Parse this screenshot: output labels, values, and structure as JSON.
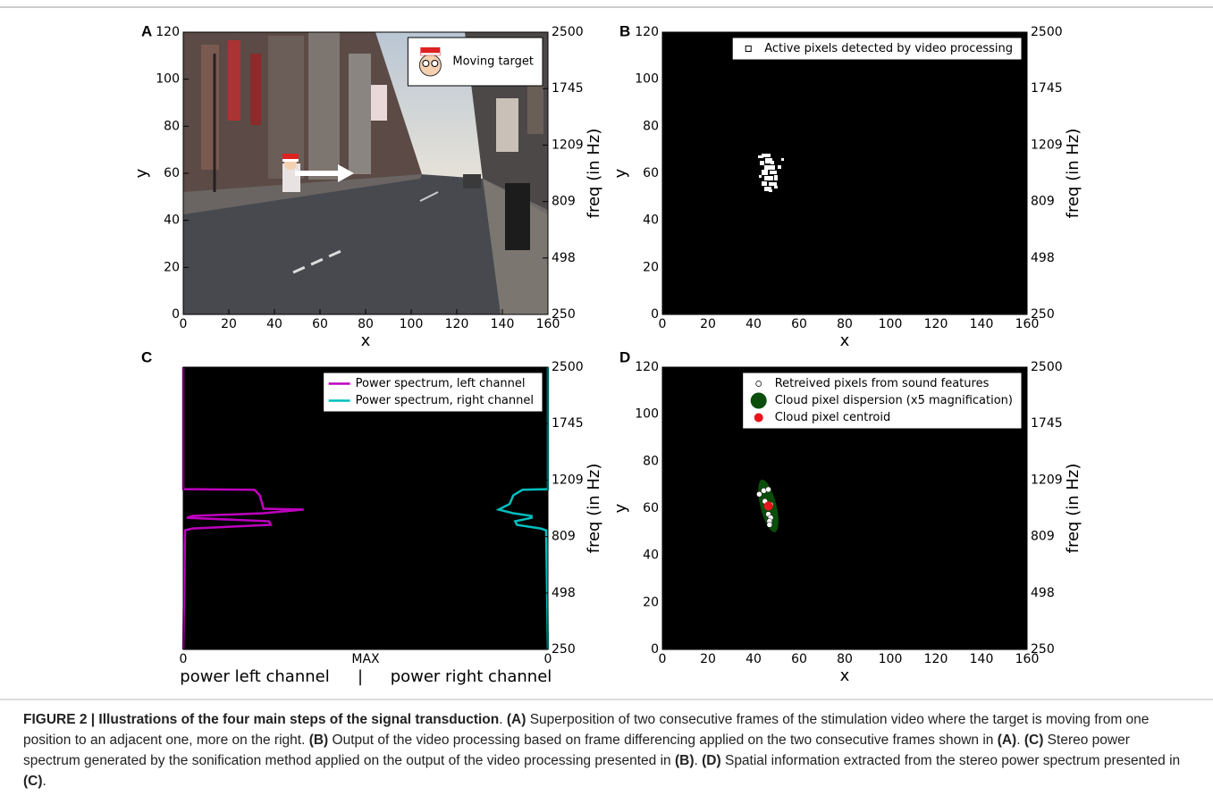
{
  "chart_data": [
    {
      "type": "photo",
      "panel_label": "A",
      "xlabel": "x",
      "ylabel": "y",
      "y2label": "freq (in Hz)",
      "xlim": [
        0,
        160
      ],
      "ylim": [
        0,
        120
      ],
      "y2lim": [
        250,
        2500
      ],
      "xticks": [
        0,
        20,
        40,
        60,
        80,
        100,
        120,
        140,
        160
      ],
      "yticks": [
        0,
        20,
        40,
        60,
        80,
        100,
        120
      ],
      "y2ticks": [
        250,
        498,
        809,
        1209,
        1745,
        2500
      ],
      "legend": "upper right",
      "legend_entries": [
        "Moving target"
      ]
    },
    {
      "type": "image",
      "panel_label": "B",
      "xlabel": "x",
      "ylabel": "y",
      "y2label": "freq (in Hz)",
      "xlim": [
        0,
        160
      ],
      "ylim": [
        0,
        120
      ],
      "y2lim": [
        250,
        2500
      ],
      "xticks": [
        0,
        20,
        40,
        60,
        80,
        100,
        120,
        140,
        160
      ],
      "yticks": [
        0,
        20,
        40,
        60,
        80,
        100,
        120
      ],
      "y2ticks": [
        250,
        498,
        809,
        1209,
        1745,
        2500
      ],
      "legend": "upper right",
      "legend_entries": [
        "Active pixels detected by video processing"
      ]
    },
    {
      "type": "line",
      "panel_label": "C",
      "y2label": "freq (in Hz)",
      "xtick_labels": [
        "0",
        "MAX",
        "0"
      ],
      "xlabel_left": "power left channel",
      "xlabel_separator": "|",
      "xlabel_right": "power right channel",
      "y2lim": [
        250,
        2500
      ],
      "y2ticks": [
        250,
        498,
        809,
        1209,
        1745,
        2500
      ],
      "legend": "upper right",
      "series": [
        {
          "name": "Power spectrum, left channel",
          "color": "#bf00bf",
          "x": [
            2500,
            1145,
            1140,
            1101,
            1006,
            1000,
            974,
            955,
            942,
            917,
            892,
            866,
            853,
            250
          ],
          "values": [
            0,
            0,
            0.39,
            0.42,
            0.44,
            0.66,
            0.44,
            0.05,
            0.02,
            0.47,
            0.48,
            0.05,
            0.01,
            0
          ]
        },
        {
          "name": "Power spectrum, right channel",
          "color": "#00bfbf",
          "x": [
            2500,
            1145,
            1140,
            1101,
            1040,
            1000,
            974,
            955,
            942,
            917,
            892,
            866,
            853,
            250
          ],
          "values": [
            0,
            0,
            0.14,
            0.19,
            0.21,
            0.27,
            0.19,
            0.09,
            0.09,
            0.18,
            0.17,
            0.04,
            0.01,
            0
          ]
        }
      ]
    },
    {
      "type": "scatter",
      "panel_label": "D",
      "xlabel": "x",
      "ylabel": "y",
      "y2label": "freq (in Hz)",
      "xlim": [
        0,
        160
      ],
      "ylim": [
        0,
        120
      ],
      "y2lim": [
        250,
        2500
      ],
      "xticks": [
        0,
        20,
        40,
        60,
        80,
        100,
        120,
        140,
        160
      ],
      "yticks": [
        0,
        20,
        40,
        60,
        80,
        100,
        120
      ],
      "y2ticks": [
        250,
        498,
        809,
        1209,
        1745,
        2500
      ],
      "legend": "upper right",
      "series": [
        {
          "name": "Retreived pixels from sound features",
          "color": "#ffffff",
          "x": [
            42.5,
            44.5,
            46.5,
            45,
            47.5,
            46.5,
            47.5,
            47,
            47
          ],
          "values": [
            66,
            67.5,
            68,
            63,
            61.5,
            57.5,
            56,
            54.5,
            53
          ]
        },
        {
          "name": "Cloud pixel dispersion (x5 magnification)",
          "color": "#0b4d0b",
          "x": [
            46.5
          ],
          "values": [
            61
          ],
          "width": [
            7
          ],
          "height": [
            23
          ],
          "angle": [
            14
          ]
        },
        {
          "name": "Cloud pixel centroid",
          "color": "#e8141b",
          "x": [
            46.5
          ],
          "values": [
            61
          ]
        }
      ]
    }
  ],
  "caption": [
    {
      "text": "FIGURE 2 | Illustrations of the four main steps of the signal transduction",
      "bold": true
    },
    {
      "text": ". ",
      "bold": false
    },
    {
      "text": "(A)",
      "bold": true
    },
    {
      "text": " Superposition of two consecutive frames of the stimulation video where the target is moving from one position to an adjacent one, more on the right. ",
      "bold": false
    },
    {
      "text": "(B)",
      "bold": true
    },
    {
      "text": " Output of the video processing based on frame differencing applied on the two consecutive frames shown in ",
      "bold": false
    },
    {
      "text": "(A)",
      "bold": true
    },
    {
      "text": ". ",
      "bold": false
    },
    {
      "text": "(C)",
      "bold": true
    },
    {
      "text": " Stereo power spectrum generated by the sonification method applied on the output of the video processing presented in ",
      "bold": false
    },
    {
      "text": "(B)",
      "bold": true
    },
    {
      "text": ". ",
      "bold": false
    },
    {
      "text": "(D)",
      "bold": true
    },
    {
      "text": " Spatial information extracted from the stereo power spectrum presented in ",
      "bold": false
    },
    {
      "text": "(C)",
      "bold": true
    },
    {
      "text": ".",
      "bold": false
    }
  ]
}
